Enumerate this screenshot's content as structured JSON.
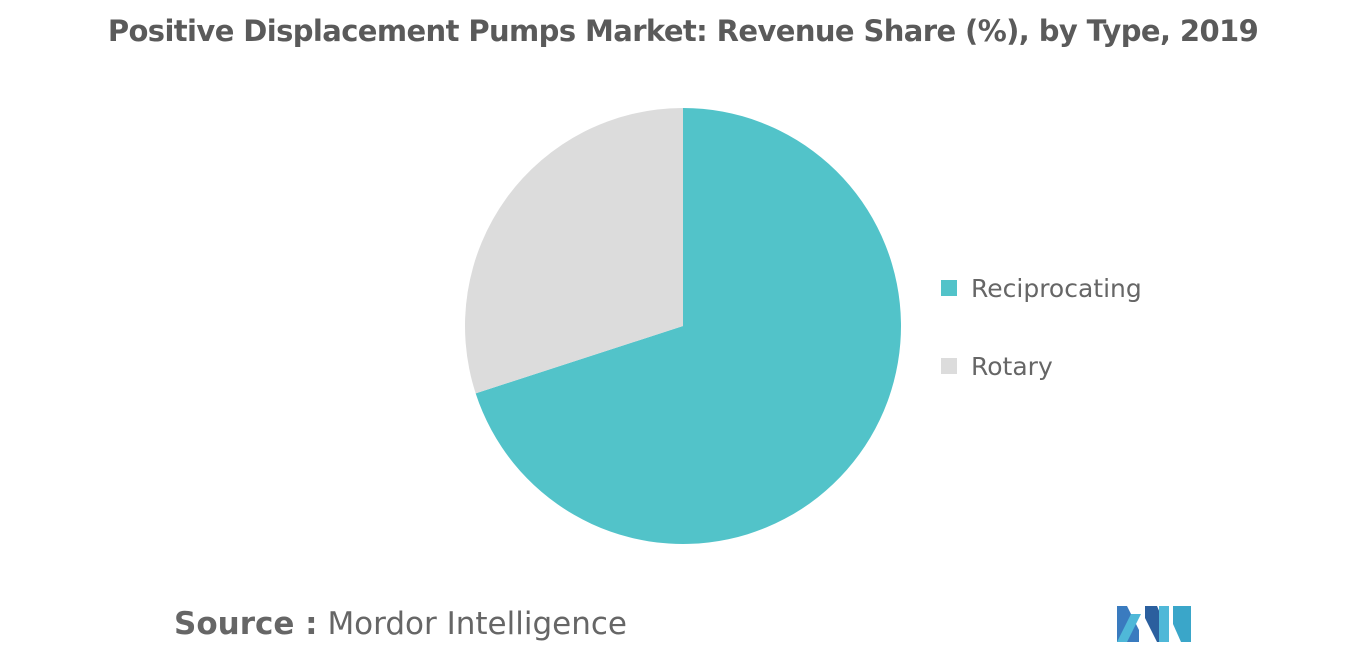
{
  "header": {
    "title": "Positive Displacement Pumps Market: Revenue Share (%), by Type, 2019"
  },
  "chart_data": {
    "type": "pie",
    "title": "Positive Displacement Pumps Market: Revenue Share (%), by Type, 2019",
    "slices": [
      {
        "name": "Reciprocating",
        "value": 70,
        "color": "#52c3c9"
      },
      {
        "name": "Rotary",
        "value": 30,
        "color": "#dcdcdc"
      }
    ],
    "legend_position": "right"
  },
  "legend": {
    "items": [
      {
        "label": "Reciprocating",
        "color": "#52c3c9"
      },
      {
        "label": "Rotary",
        "color": "#dcdcdc"
      }
    ]
  },
  "footer": {
    "source_label": "Source :",
    "source_value": "Mordor Intelligence",
    "logo_icon": "mordor-intelligence-logo-icon"
  }
}
